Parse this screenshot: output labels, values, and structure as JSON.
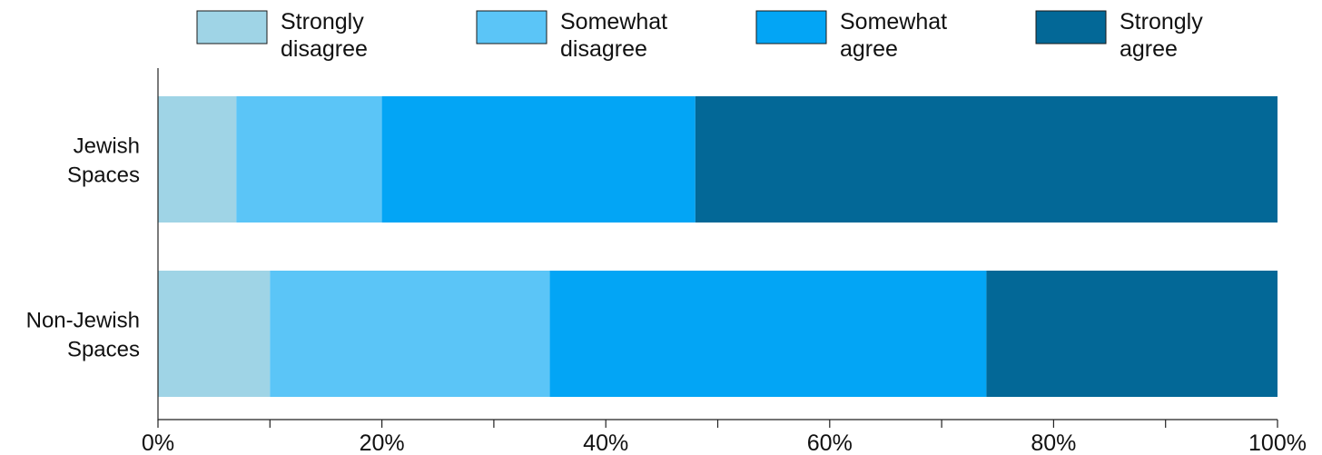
{
  "chart_data": {
    "type": "bar",
    "orientation": "horizontal",
    "stacked": true,
    "categories": [
      "Jewish Spaces",
      "Non-Jewish Spaces"
    ],
    "category_lines": [
      [
        "Jewish",
        "Spaces"
      ],
      [
        "Non-Jewish",
        "Spaces"
      ]
    ],
    "series": [
      {
        "name": "Strongly disagree",
        "name_lines": [
          "Strongly",
          "disagree"
        ],
        "color": "#9fd4e6",
        "values": [
          7,
          10
        ]
      },
      {
        "name": "Somewhat disagree",
        "name_lines": [
          "Somewhat",
          "disagree"
        ],
        "color": "#5bc5f7",
        "values": [
          13,
          25
        ]
      },
      {
        "name": "Somewhat agree",
        "name_lines": [
          "Somewhat",
          "agree"
        ],
        "color": "#03a5f5",
        "values": [
          28,
          39
        ]
      },
      {
        "name": "Strongly agree",
        "name_lines": [
          "Strongly",
          "agree"
        ],
        "color": "#036897",
        "values": [
          52,
          26
        ]
      }
    ],
    "xlim": [
      0,
      100
    ],
    "x_ticks": [
      0,
      20,
      40,
      60,
      80,
      100
    ],
    "x_minor_ticks": [
      10,
      30,
      50,
      70,
      90
    ],
    "x_tick_labels": [
      "0%",
      "20%",
      "40%",
      "60%",
      "80%",
      "100%"
    ],
    "title": "",
    "xlabel": "",
    "ylabel": "",
    "grid": false,
    "legend_position": "top"
  }
}
